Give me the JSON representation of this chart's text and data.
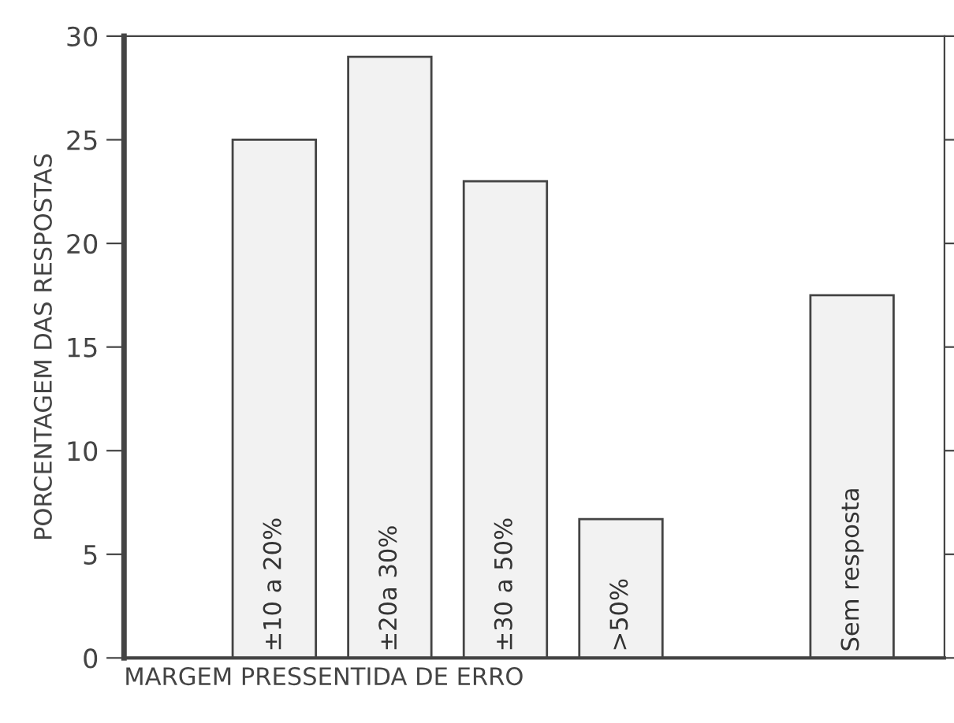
{
  "chart_data": {
    "type": "bar",
    "xlabel": "MARGEM PRESSENTIDA DE ERRO",
    "ylabel": "PORCENTAGEM DAS RESPOSTAS",
    "categories": [
      "±10 a 20%",
      "±20a 30%",
      "±30 a 50%",
      ">50%",
      null,
      "Sem resposta"
    ],
    "values": [
      25,
      29,
      23,
      6.7,
      null,
      17.5
    ],
    "color": "#f2f2f2",
    "ylim": [
      0,
      30
    ],
    "yticks": [
      0,
      5,
      10,
      15,
      20,
      25,
      30
    ],
    "grid": false,
    "legend": false
  }
}
